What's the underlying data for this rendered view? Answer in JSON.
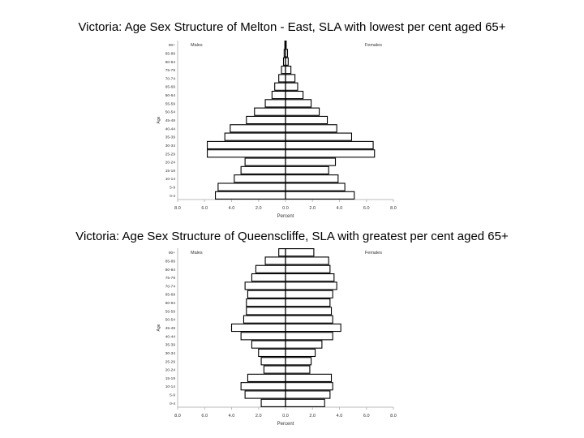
{
  "titles": {
    "top": "Victoria: Age Sex Structure of Melton - East, SLA with lowest per cent aged 65+",
    "bottom": "Victoria: Age Sex Structure of Queenscliffe, SLA with greatest per cent aged 65+"
  },
  "chart_data": [
    {
      "type": "bar",
      "orientation": "horizontal",
      "title": "Victoria: Age Sex Structure of Melton - East, SLA with lowest per cent aged 65+",
      "xlabel": "Percent",
      "ylabel": "Age",
      "legend": {
        "left": "Males",
        "right": "Females"
      },
      "xlim": [
        -8.0,
        8.0
      ],
      "x_tick_labels": [
        "8.0",
        "6.0",
        "4.0",
        "2.0",
        "0.0",
        "2.0",
        "4.0",
        "6.0",
        "8.0"
      ],
      "categories": [
        "90+",
        "85-89",
        "80-84",
        "75-79",
        "70-74",
        "65-69",
        "60-64",
        "55-59",
        "50-54",
        "45-49",
        "40-44",
        "35-39",
        "30-34",
        "25-29",
        "20-24",
        "15-19",
        "10-14",
        "5-9",
        "0-4"
      ],
      "series": [
        {
          "name": "Males",
          "values": [
            0.05,
            0.1,
            0.15,
            0.3,
            0.5,
            0.8,
            1.0,
            1.5,
            2.3,
            2.9,
            4.1,
            4.5,
            5.8,
            5.8,
            3.0,
            3.3,
            3.8,
            5.0,
            5.2
          ]
        },
        {
          "name": "Females",
          "values": [
            0.05,
            0.15,
            0.2,
            0.4,
            0.7,
            0.9,
            1.3,
            1.9,
            2.5,
            3.1,
            3.8,
            4.9,
            6.5,
            6.6,
            3.7,
            3.2,
            3.9,
            4.4,
            5.1
          ]
        }
      ]
    },
    {
      "type": "bar",
      "orientation": "horizontal",
      "title": "Victoria: Age Sex Structure of Queenscliffe, SLA with greatest per cent aged 65+",
      "xlabel": "Percent",
      "ylabel": "Age",
      "legend": {
        "left": "Males",
        "right": "Females"
      },
      "xlim": [
        -8.0,
        8.0
      ],
      "x_tick_labels": [
        "8.0",
        "6.0",
        "4.0",
        "2.0",
        "0.0",
        "2.0",
        "4.0",
        "6.0",
        "8.0"
      ],
      "categories": [
        "90+",
        "85-89",
        "80-84",
        "75-79",
        "70-74",
        "65-69",
        "60-64",
        "55-59",
        "50-54",
        "45-49",
        "40-44",
        "35-39",
        "30-34",
        "25-29",
        "20-24",
        "15-19",
        "10-14",
        "5-9",
        "0-4"
      ],
      "series": [
        {
          "name": "Males",
          "values": [
            0.5,
            1.5,
            2.2,
            2.5,
            3.0,
            2.8,
            2.9,
            2.9,
            3.1,
            4.0,
            3.3,
            2.5,
            2.0,
            1.8,
            1.6,
            2.8,
            3.3,
            3.0,
            1.8
          ]
        },
        {
          "name": "Females",
          "values": [
            2.1,
            3.2,
            3.3,
            3.6,
            3.8,
            3.5,
            3.3,
            3.4,
            3.5,
            4.1,
            3.5,
            2.7,
            2.2,
            1.9,
            1.8,
            3.4,
            3.5,
            3.3,
            2.9
          ]
        }
      ]
    }
  ]
}
